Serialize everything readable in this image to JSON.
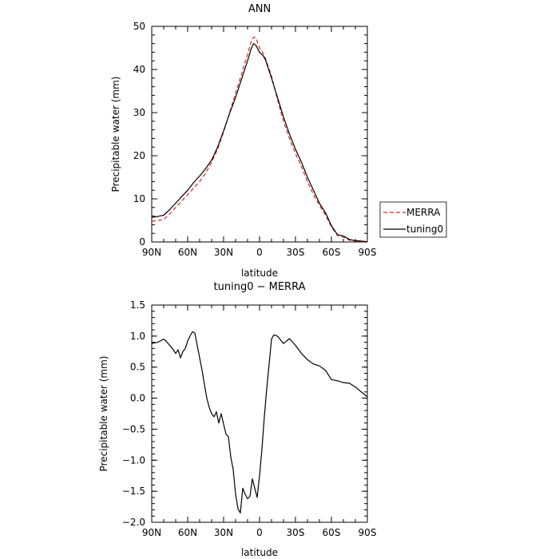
{
  "chart_data": [
    {
      "type": "line",
      "title": "ANN",
      "xlabel": "latitude",
      "ylabel": "Precipitable water (mm)",
      "xlim": [
        90,
        -90
      ],
      "ylim": [
        0,
        50
      ],
      "xticks": [
        90,
        60,
        30,
        0,
        -30,
        -60,
        -90
      ],
      "xtick_labels": [
        "90N",
        "60N",
        "30N",
        "0",
        "30S",
        "60S",
        "90S"
      ],
      "yticks": [
        0,
        10,
        20,
        30,
        40,
        50
      ],
      "ytick_labels": [
        "0",
        "10",
        "20",
        "30",
        "40",
        "50"
      ],
      "legend": "right",
      "series": [
        {
          "name": "MERRA",
          "color": "#e8221e",
          "dash": true,
          "x": [
            90,
            85,
            80,
            75,
            70,
            65,
            60,
            55,
            50,
            45,
            40,
            35,
            30,
            25,
            20,
            15,
            10,
            7,
            5,
            3,
            0,
            -3,
            -5,
            -10,
            -15,
            -20,
            -25,
            -30,
            -35,
            -40,
            -45,
            -50,
            -55,
            -60,
            -65,
            -70,
            -75,
            -80,
            -85,
            -90
          ],
          "y": [
            4.8,
            5.0,
            5.2,
            6.5,
            8.0,
            9.5,
            11.0,
            12.5,
            14.0,
            16.0,
            18.5,
            21.5,
            25.5,
            30.0,
            34.5,
            39.0,
            43.5,
            46.5,
            47.5,
            47.3,
            45.0,
            43.8,
            42.5,
            38.5,
            33.0,
            28.0,
            24.0,
            20.5,
            17.5,
            14.0,
            11.0,
            8.5,
            6.3,
            3.5,
            1.5,
            1.1,
            0.4,
            0.2,
            0.1,
            0.0
          ]
        },
        {
          "name": "tuning0",
          "color": "#000000",
          "dash": false,
          "x": [
            90,
            85,
            80,
            75,
            70,
            65,
            60,
            55,
            50,
            45,
            40,
            35,
            30,
            25,
            20,
            15,
            10,
            7,
            5,
            3,
            0,
            -3,
            -5,
            -10,
            -15,
            -20,
            -25,
            -30,
            -35,
            -40,
            -45,
            -50,
            -55,
            -60,
            -65,
            -70,
            -75,
            -80,
            -85,
            -90
          ],
          "y": [
            5.7,
            5.9,
            6.2,
            7.5,
            9.0,
            10.5,
            12.0,
            13.8,
            15.3,
            17.0,
            19.0,
            22.0,
            25.8,
            29.8,
            33.5,
            37.8,
            42.0,
            44.8,
            46.0,
            45.6,
            44.0,
            43.2,
            42.2,
            38.0,
            33.5,
            29.0,
            25.0,
            21.5,
            18.5,
            15.0,
            12.0,
            9.0,
            6.8,
            3.8,
            1.7,
            1.4,
            0.6,
            0.3,
            0.2,
            0.05
          ]
        }
      ]
    },
    {
      "type": "line",
      "title": "tuning0 − MERRA",
      "xlabel": "latitude",
      "ylabel": "Precipitable water (mm)",
      "xlim": [
        90,
        -90
      ],
      "ylim": [
        -2.0,
        1.5
      ],
      "xticks": [
        90,
        60,
        30,
        0,
        -30,
        -60,
        -90
      ],
      "xtick_labels": [
        "90N",
        "60N",
        "30N",
        "0",
        "30S",
        "60S",
        "90S"
      ],
      "yticks": [
        1.5,
        1.0,
        0.5,
        0.0,
        -0.5,
        -1.0,
        -1.5,
        -2.0
      ],
      "ytick_labels": [
        "1.5",
        "1.0",
        "0.5",
        "0.0",
        "−0.5",
        "−1.0",
        "−1.5",
        "−2.0"
      ],
      "series": [
        {
          "color": "#000000",
          "x": [
            90,
            85,
            80,
            78,
            75,
            72,
            70,
            68,
            66,
            64,
            62,
            60,
            58,
            56,
            54,
            52,
            50,
            48,
            46,
            44,
            42,
            40,
            38,
            36,
            34,
            32,
            30,
            28,
            26,
            24,
            22,
            20,
            18,
            16,
            14,
            12,
            10,
            8,
            6,
            4,
            2,
            0,
            -2,
            -4,
            -6,
            -8,
            -10,
            -12,
            -15,
            -20,
            -25,
            -30,
            -35,
            -40,
            -45,
            -50,
            -55,
            -60,
            -65,
            -70,
            -75,
            -80,
            -85,
            -90
          ],
          "y": [
            0.88,
            0.9,
            0.95,
            0.92,
            0.85,
            0.78,
            0.72,
            0.78,
            0.65,
            0.75,
            0.8,
            0.92,
            1.0,
            1.07,
            1.05,
            0.85,
            0.65,
            0.45,
            0.22,
            0.0,
            -0.15,
            -0.25,
            -0.3,
            -0.22,
            -0.4,
            -0.25,
            -0.42,
            -0.58,
            -0.62,
            -0.95,
            -1.15,
            -1.55,
            -1.78,
            -1.85,
            -1.45,
            -1.55,
            -1.62,
            -1.58,
            -1.3,
            -1.45,
            -1.6,
            -1.25,
            -0.82,
            -0.3,
            0.15,
            0.55,
            0.95,
            1.02,
            1.0,
            0.88,
            0.96,
            0.85,
            0.72,
            0.62,
            0.55,
            0.52,
            0.45,
            0.3,
            0.28,
            0.25,
            0.24,
            0.18,
            0.1,
            0.02
          ]
        }
      ]
    }
  ]
}
